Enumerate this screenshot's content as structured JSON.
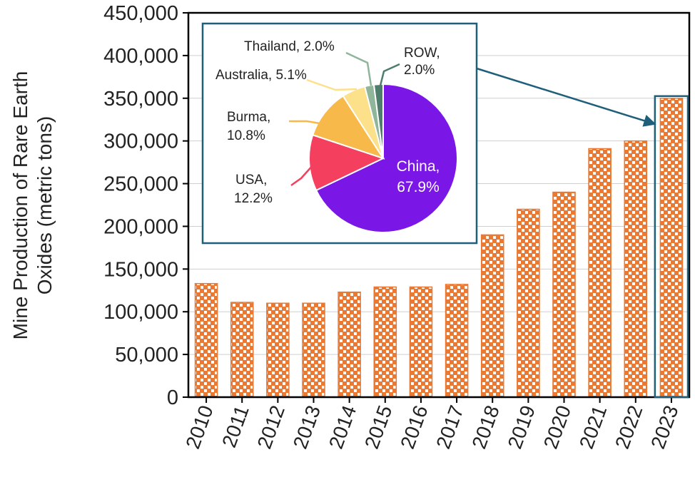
{
  "chart_data": [
    {
      "type": "bar",
      "title": "",
      "xlabel": "",
      "ylabel": "Mine Production of Rare Earth Oxides (metric tons)",
      "ylabel_lines": [
        "Mine Production of Rare Earth",
        "Oxides (metric tons)"
      ],
      "ylim": [
        0,
        450000
      ],
      "yticks": [
        0,
        50000,
        100000,
        150000,
        200000,
        250000,
        300000,
        350000,
        400000,
        450000
      ],
      "ytick_labels": [
        "0",
        "50,000",
        "100,000",
        "150,000",
        "200,000",
        "250,000",
        "300,000",
        "350,000",
        "400,000",
        "450,000"
      ],
      "grid": true,
      "categories": [
        "2010",
        "2011",
        "2012",
        "2013",
        "2014",
        "2015",
        "2016",
        "2017",
        "2018",
        "2019",
        "2020",
        "2021",
        "2022",
        "2023"
      ],
      "values": [
        133000,
        111000,
        110000,
        110000,
        123000,
        129000,
        129000,
        132000,
        190000,
        220000,
        240000,
        291000,
        300000,
        350000
      ],
      "bar_color": "#e87a35",
      "highlight_category": "2023"
    },
    {
      "type": "pie",
      "title": "",
      "year": "2023",
      "slices": [
        {
          "label": "China,",
          "value": 67.9,
          "value_label": "67.9%",
          "color": "#7a16e6"
        },
        {
          "label": "USA,",
          "value": 12.2,
          "value_label": "12.2%",
          "color": "#f43f5e"
        },
        {
          "label": "Burma,",
          "value": 10.8,
          "value_label": "10.8%",
          "color": "#f7b94a"
        },
        {
          "label": "Australia, 5.1%",
          "value": 5.1,
          "value_label": "",
          "color": "#fde08a"
        },
        {
          "label": "Thailand, 2.0%",
          "value": 2.0,
          "value_label": "",
          "color": "#8fb59a"
        },
        {
          "label": "ROW,",
          "value": 2.0,
          "value_label": "2.0%",
          "color": "#4f7d6b"
        }
      ]
    }
  ],
  "colors": {
    "frame": "#1f5f7a",
    "arrow": "#1f5f7a",
    "grid": "#cfcfcf"
  }
}
